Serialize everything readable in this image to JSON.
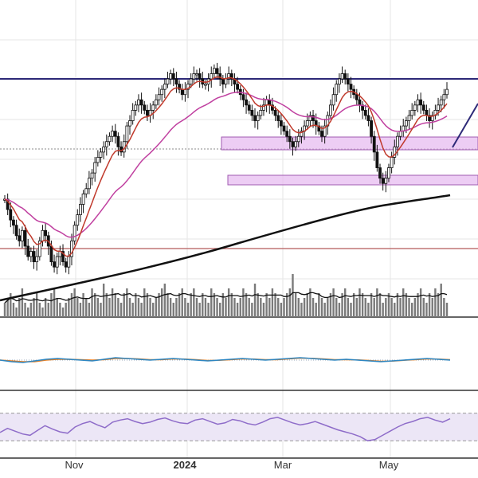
{
  "colors": {
    "background": "#ffffff",
    "grid": "#e6e6e6",
    "border": "#333333",
    "candle": "#111111",
    "ema_short": "#c0392b",
    "ema_mid": "#c040a0",
    "sma_long": "#111111",
    "resistance_line": "#2e2a78",
    "support_line": "#b55a5a",
    "dotted_line": "#888888",
    "zone_fill": "#e6b8ef",
    "zone_stroke": "#a05ab0",
    "volume_bar": "#7a7a7a",
    "volume_ma": "#111111",
    "macd_line": "#2e86c1",
    "signal_line": "#e67e22",
    "rsi_line": "#8e6cc9",
    "rsi_band": "#ece6f6",
    "arrow": "#2e2a78"
  },
  "chart_data": [
    {
      "type": "candlestick",
      "title": "",
      "x_ticks": [
        "Nov",
        "2024",
        "Mar",
        "May"
      ],
      "x_ticks_bold": [
        false,
        true,
        false,
        false
      ],
      "overlays": [
        "EMA short",
        "EMA mid",
        "SMA long"
      ],
      "horizontal_lines": [
        "resistance",
        "prior close",
        "support"
      ],
      "zones": [
        "upper resistance zone",
        "lower support zone"
      ],
      "series": [
        {
          "values": [
            48,
            46,
            44,
            43,
            41,
            40,
            42,
            39,
            37,
            38,
            36,
            37,
            40,
            42,
            41,
            39,
            36,
            35,
            37,
            38,
            36,
            35,
            37,
            40,
            43,
            45,
            47,
            49,
            50,
            52,
            53,
            55,
            56,
            57,
            58,
            59,
            60,
            61,
            60,
            58,
            57,
            59,
            62,
            63,
            65,
            66,
            67,
            66,
            65,
            64,
            65,
            66,
            67,
            68,
            69,
            70,
            71,
            72,
            71,
            70,
            69,
            68,
            69,
            70,
            71,
            72,
            72,
            71,
            70,
            70,
            71,
            72,
            73,
            72,
            71,
            70,
            71,
            72,
            71,
            70,
            69,
            68,
            67,
            66,
            65,
            64,
            63,
            64,
            65,
            66,
            67,
            66,
            65,
            64,
            63,
            62,
            61,
            60,
            59,
            58,
            59,
            60,
            61,
            62,
            63,
            64,
            63,
            62,
            61,
            60,
            62,
            64,
            66,
            68,
            70,
            71,
            72,
            71,
            70,
            69,
            68,
            67,
            66,
            65,
            64,
            63,
            60,
            57,
            54,
            52,
            51,
            52,
            54,
            56,
            58,
            60,
            61,
            62,
            63,
            64,
            65,
            66,
            67,
            66,
            65,
            64,
            63,
            64,
            65,
            66,
            67,
            68,
            69
          ]
        }
      ]
    },
    {
      "type": "bar",
      "title": "",
      "series": [
        {
          "values": [
            3,
            4,
            5,
            3,
            2,
            4,
            6,
            3,
            2,
            3,
            4,
            5,
            3,
            2,
            4,
            3,
            5,
            6,
            4,
            3,
            2,
            3,
            4,
            5,
            6,
            4,
            3,
            5,
            4,
            3,
            6,
            5,
            4,
            3,
            7,
            5,
            4,
            6,
            5,
            4,
            3,
            5,
            6,
            4,
            3,
            5,
            4,
            3,
            6,
            5,
            4,
            3,
            4,
            5,
            6,
            7,
            5,
            4,
            3,
            4,
            5,
            6,
            4,
            3,
            5,
            6,
            4,
            3,
            5,
            4,
            3,
            6,
            5,
            4,
            3,
            5,
            4,
            6,
            5,
            4,
            3,
            4,
            6,
            5,
            4,
            3,
            7,
            5,
            4,
            3,
            5,
            4,
            6,
            5,
            4,
            3,
            4,
            5,
            6,
            9,
            5,
            4,
            3,
            4,
            5,
            6,
            4,
            3,
            5,
            4,
            3,
            4,
            5,
            6,
            4,
            3,
            5,
            6,
            4,
            3,
            5,
            4,
            6,
            5,
            4,
            3,
            5,
            4,
            6,
            5,
            3,
            4,
            5,
            4,
            3,
            5,
            4,
            6,
            5,
            4,
            3,
            4,
            5,
            6,
            4,
            3,
            5,
            4,
            6,
            5,
            7,
            4,
            3
          ]
        }
      ]
    },
    {
      "type": "line",
      "title": "",
      "series": [
        {
          "values": [
            0,
            -0.2,
            -0.3,
            -0.1,
            0.1,
            0.2,
            0.1,
            0,
            -0.1,
            0.1,
            0.3,
            0.2,
            0.1,
            0,
            0.1,
            0.2,
            0.1,
            0,
            -0.1,
            0,
            0.1,
            0.2,
            0.1,
            0,
            0.1,
            0.2,
            0.3,
            0.2,
            0.1,
            0,
            0.1,
            0,
            -0.1,
            -0.2,
            -0.1,
            0,
            0.1,
            0.2,
            0.1,
            0
          ]
        },
        {
          "values": [
            0,
            -0.1,
            -0.2,
            -0.2,
            0,
            0.1,
            0.1,
            0.05,
            0,
            0.05,
            0.2,
            0.2,
            0.15,
            0.05,
            0.05,
            0.15,
            0.12,
            0.05,
            -0.05,
            -0.02,
            0.05,
            0.15,
            0.12,
            0.05,
            0.05,
            0.15,
            0.25,
            0.22,
            0.15,
            0.05,
            0.05,
            0.02,
            -0.05,
            -0.15,
            -0.12,
            -0.02,
            0.05,
            0.15,
            0.12,
            0.05
          ]
        }
      ]
    },
    {
      "type": "line",
      "title": "",
      "band": [
        30,
        70
      ],
      "series": [
        {
          "values": [
            42,
            48,
            44,
            40,
            38,
            45,
            52,
            47,
            43,
            41,
            50,
            55,
            58,
            53,
            49,
            57,
            60,
            62,
            58,
            55,
            57,
            61,
            63,
            59,
            56,
            55,
            60,
            62,
            58,
            54,
            56,
            61,
            59,
            55,
            53,
            57,
            62,
            64,
            60,
            56,
            53,
            55,
            58,
            54,
            50,
            46,
            43,
            40,
            36,
            30,
            32,
            38,
            44,
            50,
            55,
            58,
            62,
            64,
            60,
            57,
            62
          ]
        }
      ]
    }
  ]
}
